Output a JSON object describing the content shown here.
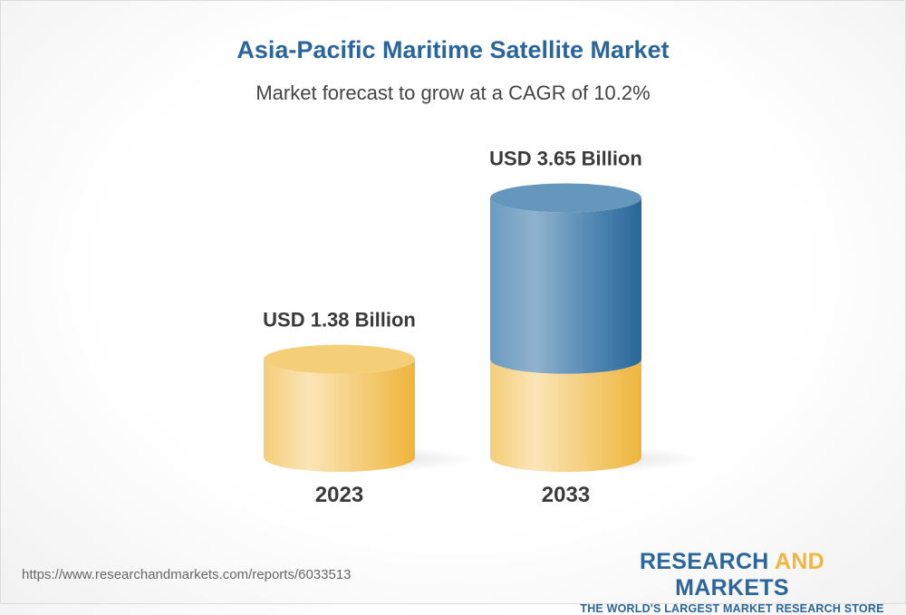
{
  "chart_data": {
    "type": "bar",
    "title": "Asia-Pacific Maritime Satellite Market",
    "subtitle": "Market forecast to grow at a CAGR of 10.2%",
    "categories": [
      "2023",
      "2033"
    ],
    "values": [
      1.38,
      3.65
    ],
    "data_labels": [
      "USD 1.38 Billion",
      "USD 3.65 Billion"
    ],
    "unit": "USD Billion",
    "style": "3d-cylinder",
    "colors": {
      "base": "#f0b63d",
      "growth": "#2a669b"
    }
  },
  "footer": {
    "url": "https://www.researchandmarkets.com/reports/6033513",
    "logo_part1": "RESEARCH ",
    "logo_part2": "AND",
    "logo_part3": " MARKETS",
    "logo_tagline": "THE WORLD'S LARGEST MARKET RESEARCH STORE"
  }
}
